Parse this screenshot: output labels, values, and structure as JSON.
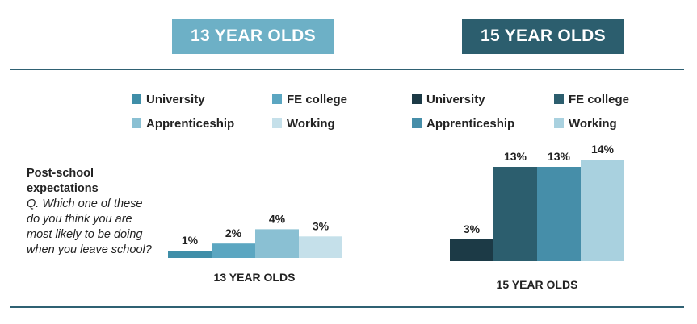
{
  "headers": {
    "left": "13 YEAR OLDS",
    "right": "15 YEAR OLDS"
  },
  "question": {
    "title": "Post-school expectations",
    "text": "Q. Which one of these do you think you are most likely to be doing when you leave school?"
  },
  "colors": {
    "header_left": "#6db0c6",
    "header_right": "#2c5e6e",
    "rule": "#2f6173"
  },
  "chart_data": [
    {
      "type": "bar",
      "title": "",
      "xlabel": "13 YEAR OLDS",
      "categories": [
        "University",
        "FE college",
        "Apprenticeship",
        "Working"
      ],
      "values": [
        1,
        2,
        4,
        3
      ],
      "value_labels": [
        "1%",
        "2%",
        "4%",
        "3%"
      ],
      "colors": [
        "#3f8ea8",
        "#5ba6c1",
        "#8ac0d3",
        "#c5e0ea"
      ],
      "ylim": [
        0,
        14
      ],
      "unit": "%",
      "grid": false,
      "legend": "top"
    },
    {
      "type": "bar",
      "title": "",
      "xlabel": "15 YEAR OLDS",
      "categories": [
        "University",
        "FE college",
        "Apprenticeship",
        "Working"
      ],
      "values": [
        3,
        13,
        13,
        14
      ],
      "value_labels": [
        "3%",
        "13%",
        "13%",
        "14%"
      ],
      "colors": [
        "#1c3a46",
        "#2c5e6e",
        "#468ea9",
        "#a9d1df"
      ],
      "ylim": [
        0,
        14
      ],
      "unit": "%",
      "grid": false,
      "legend": "top"
    }
  ]
}
